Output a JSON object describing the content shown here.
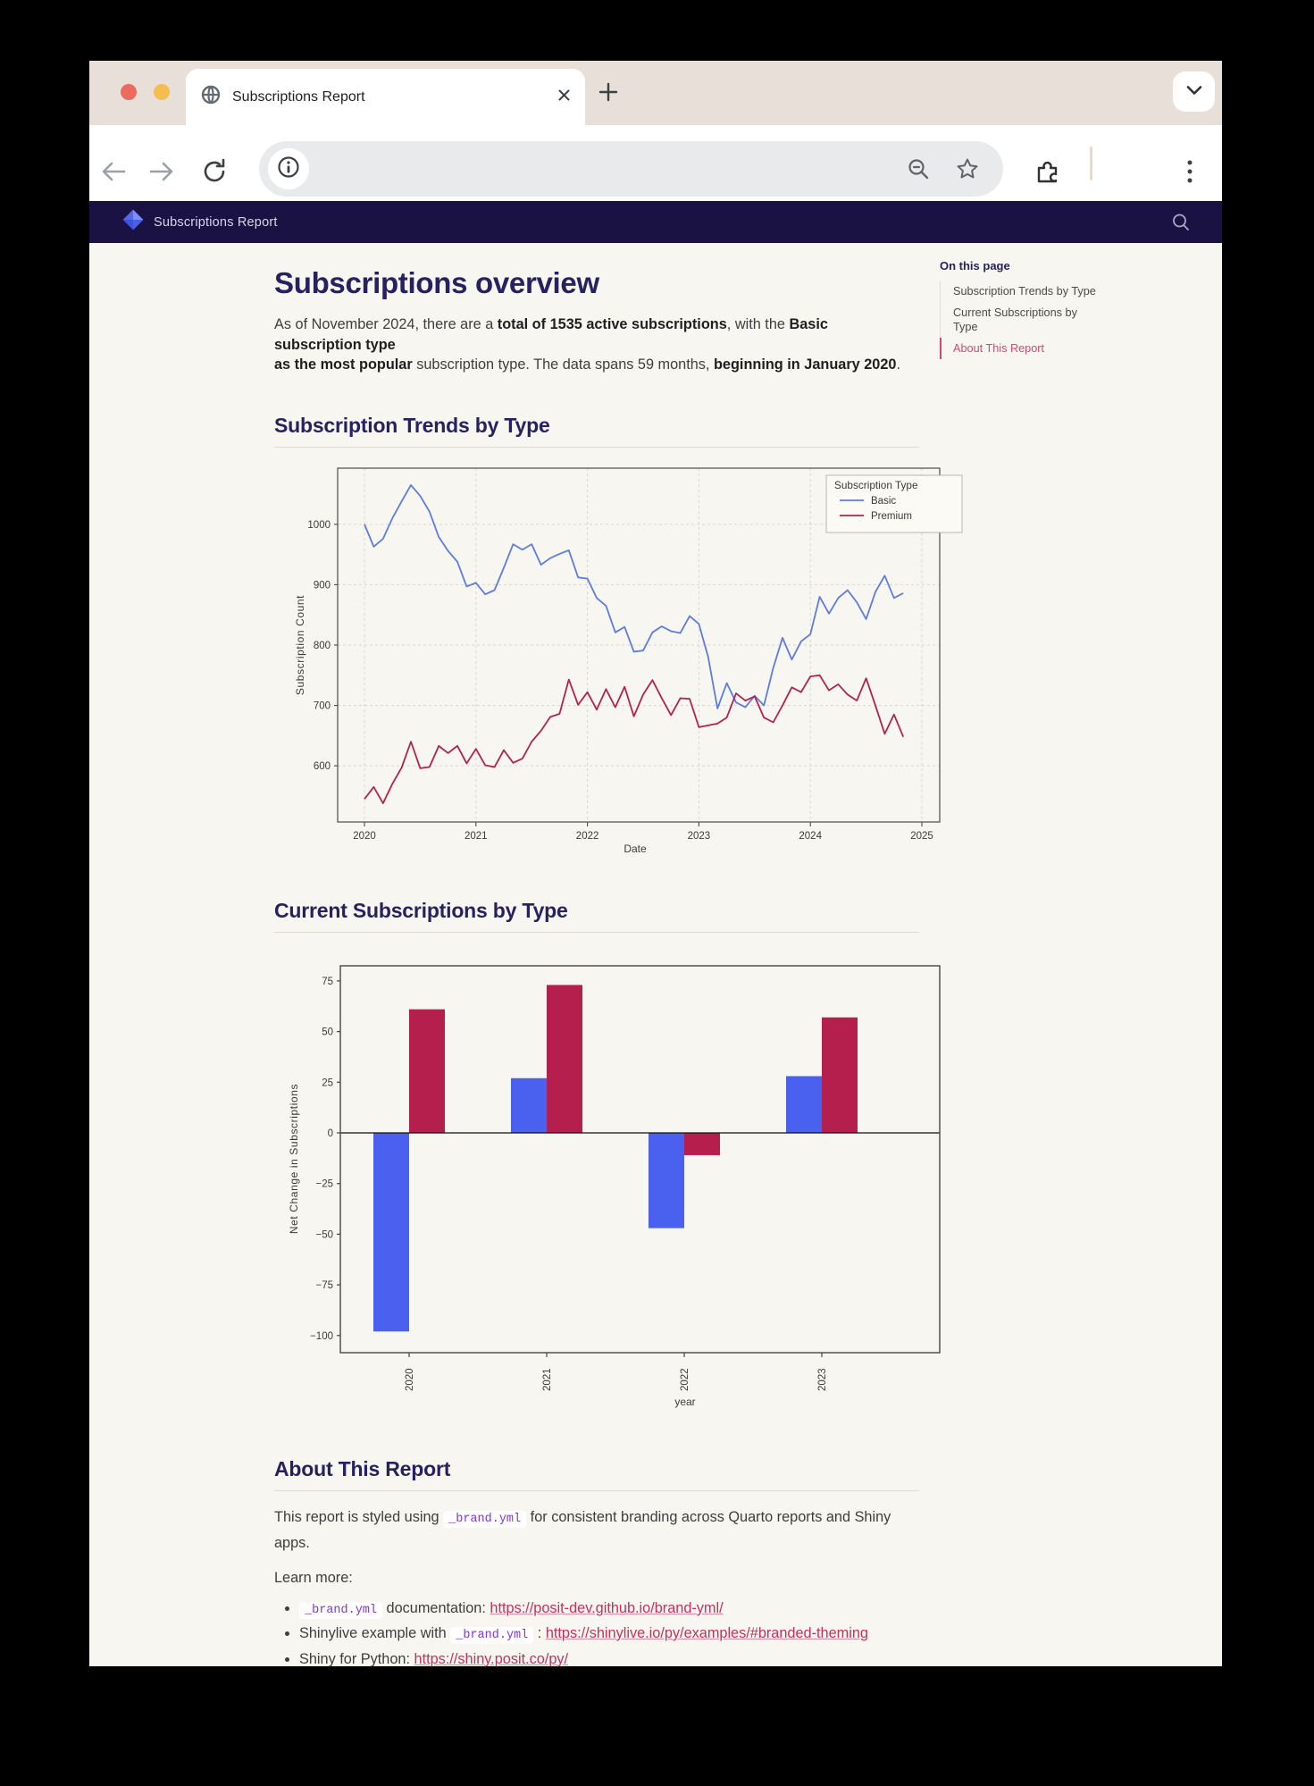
{
  "browser": {
    "tab_title": "Subscriptions Report",
    "new_tab_label": "+",
    "close_label": "×"
  },
  "navbar": {
    "brand": "Subscriptions Report"
  },
  "toc": {
    "title": "On this page",
    "items": [
      {
        "label": "Subscription Trends by Type",
        "active": false
      },
      {
        "label": "Current Subscriptions by Type",
        "active": false
      },
      {
        "label": "About This Report",
        "active": true
      }
    ]
  },
  "page": {
    "title": "Subscriptions overview",
    "intro_segments": [
      {
        "text": "As of November 2024, there are a "
      },
      {
        "text": "total of 1535 active subscriptions",
        "bold": true
      },
      {
        "text": ", with the "
      },
      {
        "text": "Basic subscription type\nas the most popular",
        "bold": true
      },
      {
        "text": " subscription type. The data spans 59 months, "
      },
      {
        "text": "beginning in January 2020",
        "bold": true
      },
      {
        "text": "."
      }
    ],
    "section1_title": "Subscription Trends by Type",
    "section2_title": "Current Subscriptions by Type",
    "section3_title": "About This Report"
  },
  "about": {
    "para_segments": [
      {
        "text": "This report is styled using "
      },
      {
        "code": "_brand.yml"
      },
      {
        "text": " for consistent branding across Quarto reports and Shiny apps."
      }
    ],
    "learn_more_label": "Learn more:",
    "bullets": [
      [
        {
          "code": "_brand.yml"
        },
        {
          "text": " documentation: "
        },
        {
          "link": "https://posit-dev.github.io/brand-yml/"
        }
      ],
      [
        {
          "text": "Shinylive example with "
        },
        {
          "code": "_brand.yml"
        },
        {
          "text": " : "
        },
        {
          "link": "https://shinylive.io/py/examples/#branded-theming"
        }
      ],
      [
        {
          "text": "Shiny for Python: "
        },
        {
          "link": "https://shiny.posit.co/py/"
        }
      ]
    ]
  },
  "chart_data": [
    {
      "type": "line",
      "title": "",
      "xlabel": "Date",
      "ylabel": "Subscription Count",
      "legend_title": "Subscription Type",
      "legend_position": "upper right",
      "grid": true,
      "x_start": "2020-01",
      "x_end": "2024-11",
      "n_months": 59,
      "xticks": [
        2020,
        2021,
        2022,
        2023,
        2024,
        2025
      ],
      "yticks": [
        600,
        700,
        800,
        900,
        1000
      ],
      "ylim": [
        507,
        1093
      ],
      "series": [
        {
          "name": "Basic",
          "color": "#5c7ce0",
          "values": [
            1000,
            963,
            976,
            1010,
            1038,
            1065,
            1047,
            1021,
            979,
            956,
            938,
            897,
            903,
            884,
            891,
            928,
            967,
            958,
            967,
            933,
            944,
            951,
            957,
            912,
            910,
            878,
            865,
            821,
            830,
            789,
            791,
            821,
            831,
            823,
            820,
            848,
            835,
            780,
            695,
            737,
            705,
            697,
            716,
            700,
            762,
            812,
            776,
            806,
            818,
            880,
            852,
            878,
            891,
            871,
            843,
            888,
            915,
            878,
            886
          ]
        },
        {
          "name": "Premium",
          "color": "#b2234c",
          "values": [
            545,
            565,
            538,
            570,
            597,
            640,
            596,
            598,
            633,
            621,
            633,
            604,
            628,
            601,
            598,
            626,
            605,
            612,
            640,
            658,
            681,
            686,
            743,
            701,
            722,
            693,
            727,
            697,
            731,
            682,
            718,
            742,
            712,
            684,
            712,
            711,
            664,
            667,
            670,
            680,
            720,
            708,
            715,
            680,
            672,
            700,
            730,
            722,
            748,
            750,
            725,
            735,
            718,
            708,
            745,
            700,
            653,
            685,
            648
          ]
        }
      ]
    },
    {
      "type": "bar",
      "title": "",
      "xlabel": "year",
      "ylabel": "Net Change in Subscriptions",
      "grid": false,
      "categories": [
        "2020",
        "2021",
        "2022",
        "2023"
      ],
      "yticks": [
        -100,
        -75,
        -50,
        -25,
        0,
        25,
        50,
        75
      ],
      "ylim": [
        -108,
        82
      ],
      "series": [
        {
          "name": "Basic",
          "color": "#4a61ef",
          "values": [
            -98,
            27,
            -47,
            28
          ]
        },
        {
          "name": "Premium",
          "color": "#b51f4e",
          "values": [
            61,
            73,
            -11,
            57
          ]
        }
      ]
    }
  ]
}
